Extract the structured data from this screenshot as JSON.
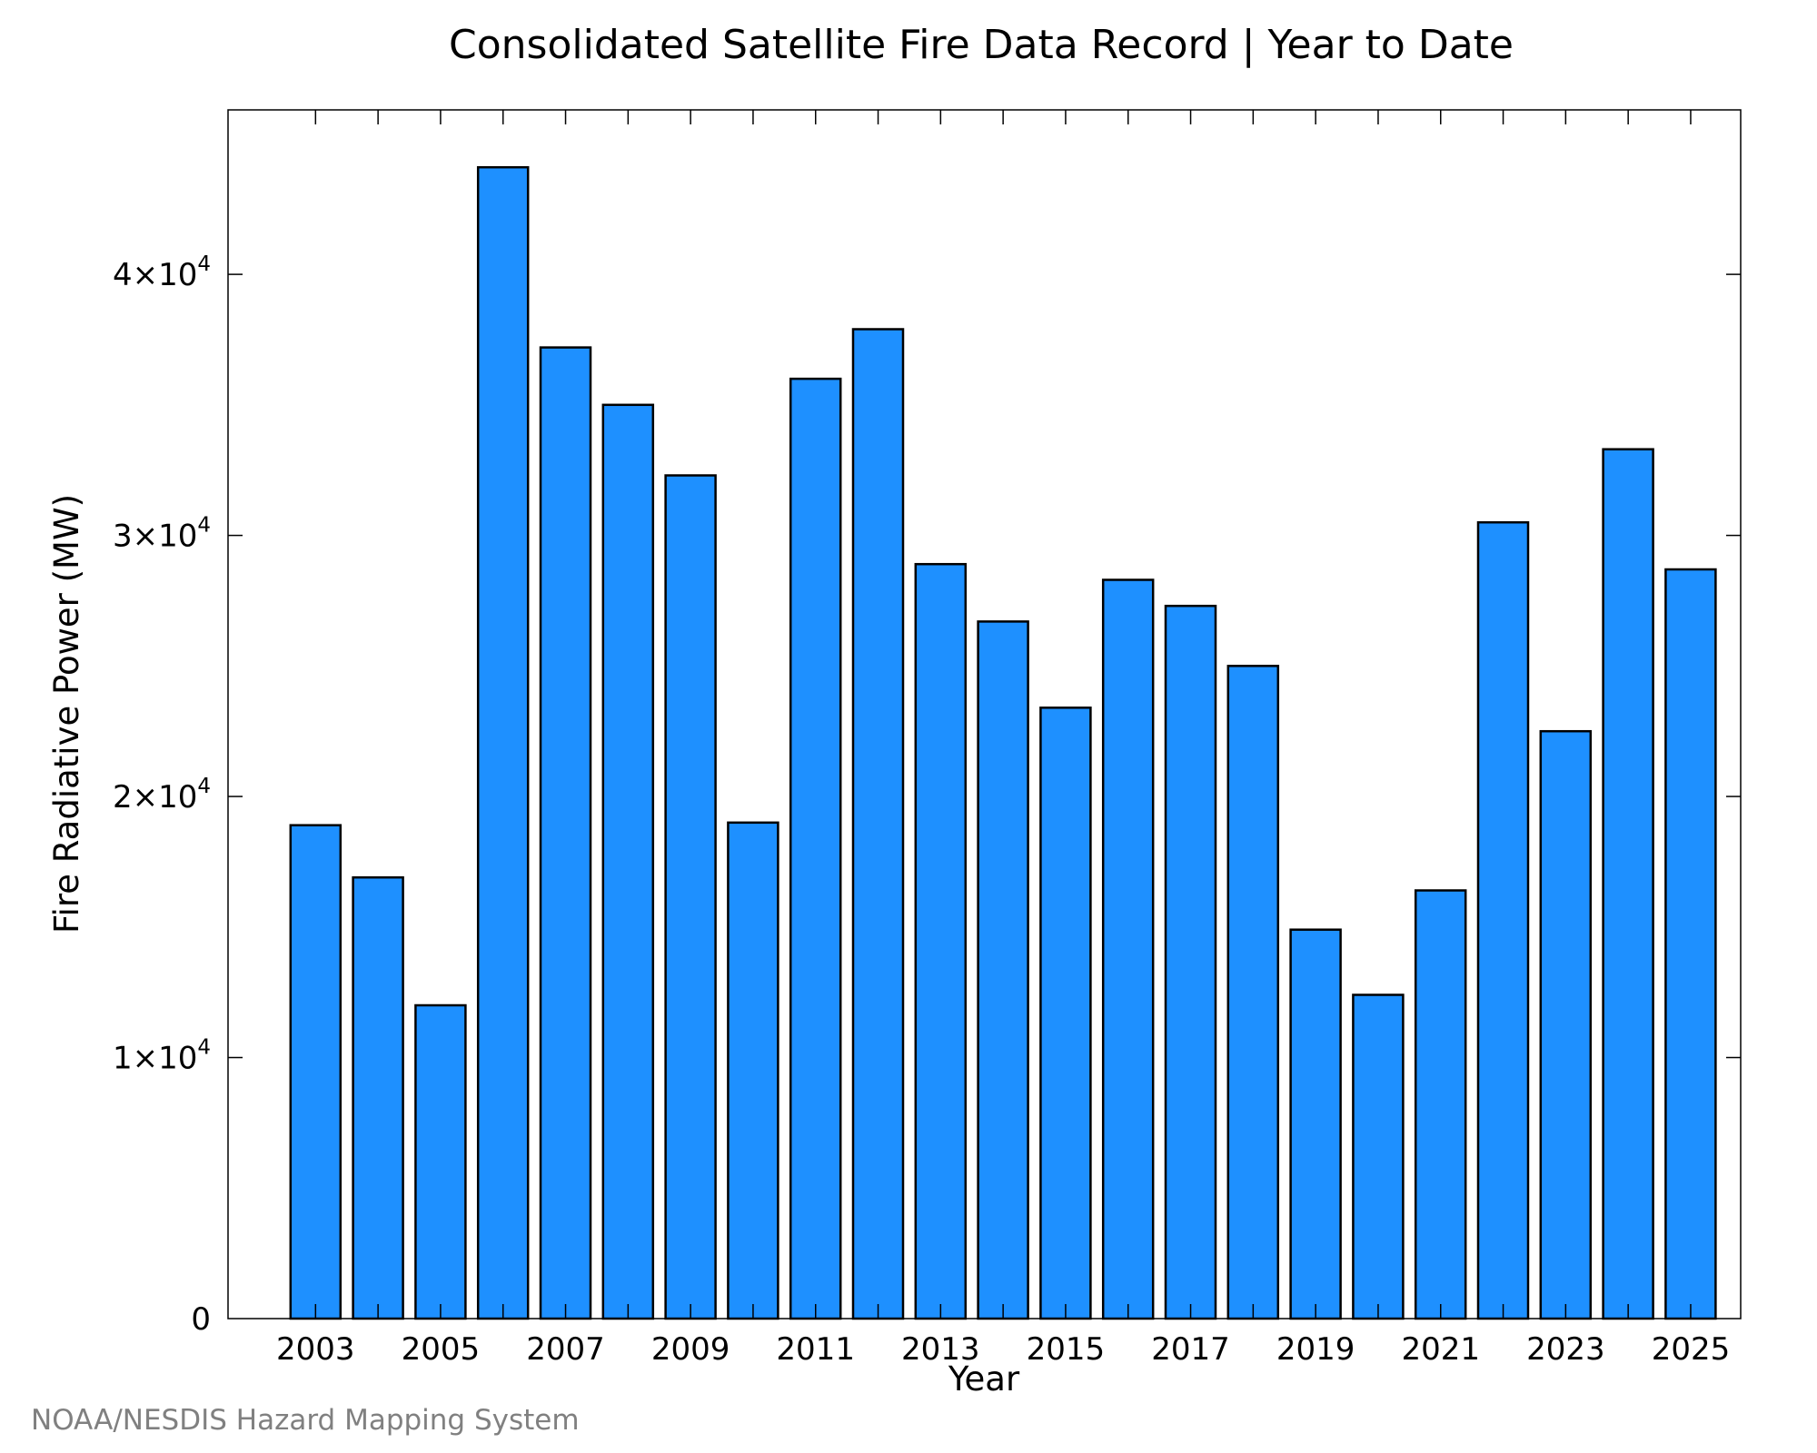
{
  "chart_data": {
    "type": "bar",
    "title": "Consolidated Satellite Fire Data Record | Year to Date",
    "xlabel": "Year",
    "ylabel": "Fire Radiative Power (MW)",
    "credit": "NOAA/NESDIS Hazard Mapping System",
    "categories": [
      2003,
      2004,
      2005,
      2006,
      2007,
      2008,
      2009,
      2010,
      2011,
      2012,
      2013,
      2014,
      2015,
      2016,
      2017,
      2018,
      2019,
      2020,
      2021,
      2022,
      2023,
      2024,
      2025
    ],
    "values": [
      18900,
      16900,
      12000,
      44100,
      37200,
      35000,
      32300,
      19000,
      36000,
      37900,
      28900,
      26700,
      23400,
      28300,
      27300,
      25000,
      14900,
      12400,
      16400,
      30500,
      22500,
      33300,
      28700
    ],
    "x_tick_labels": [
      "2003",
      "2005",
      "2007",
      "2009",
      "2011",
      "2013",
      "2015",
      "2017",
      "2019",
      "2021",
      "2023",
      "2025"
    ],
    "y_ticks": [
      {
        "value": 0,
        "mantissa": "0",
        "exponent": ""
      },
      {
        "value": 10000,
        "mantissa": "1×10",
        "exponent": "4"
      },
      {
        "value": 20000,
        "mantissa": "2×10",
        "exponent": "4"
      },
      {
        "value": 30000,
        "mantissa": "3×10",
        "exponent": "4"
      },
      {
        "value": 40000,
        "mantissa": "4×10",
        "exponent": "4"
      }
    ],
    "xlim": [
      2001.6,
      2025.8
    ],
    "ylim": [
      0,
      46300
    ],
    "bar_color": "#1E90FF",
    "bar_edge_color": "#000000",
    "grid": false,
    "legend": "none"
  }
}
